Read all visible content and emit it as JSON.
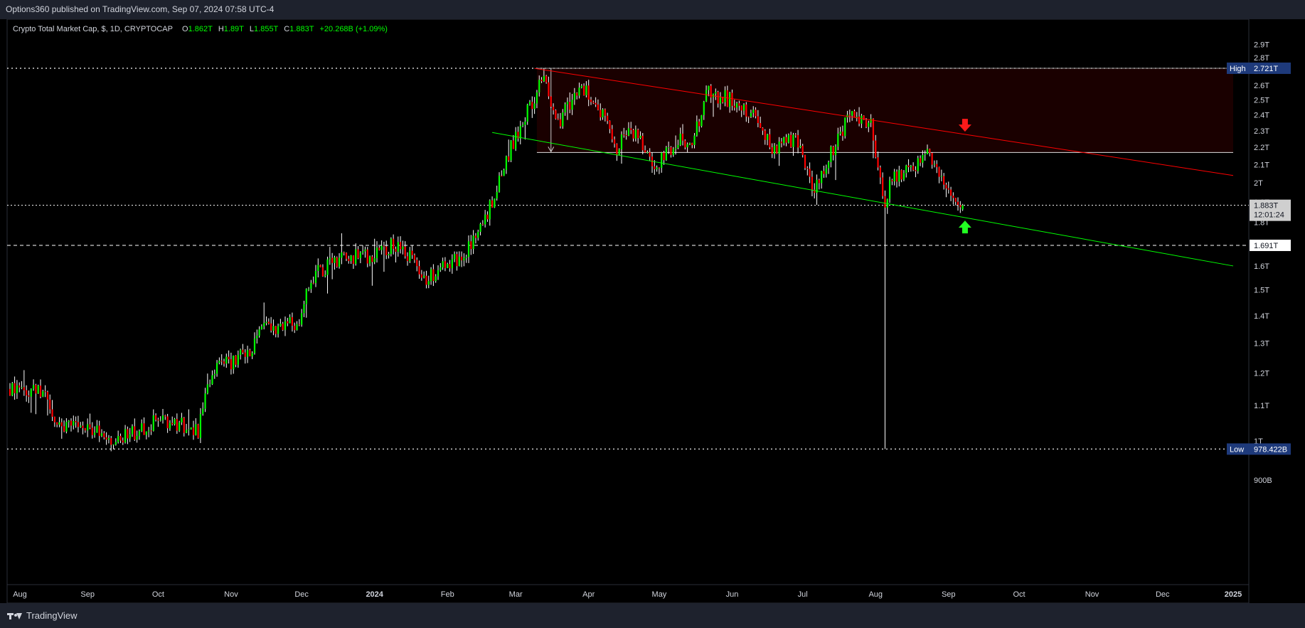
{
  "publish_line": "Options360 published on TradingView.com, Sep 07, 2024 07:58 UTC-4",
  "legend": {
    "symbol": "Crypto Total Market Cap, $, 1D, CRYPTOCAP",
    "open_label": "O",
    "open": "1.862T",
    "high_label": "H",
    "high": "1.89T",
    "low_label": "L",
    "low": "1.855T",
    "close_label": "C",
    "close": "1.883T",
    "change": "+20.268B (+1.09%)"
  },
  "price_axis_ticks": [
    "2.9T",
    "2.8T",
    "2.7T",
    "2.6T",
    "2.5T",
    "2.4T",
    "2.3T",
    "2.2T",
    "2.1T",
    "2T",
    "1.9T",
    "1.8T",
    "1.7T",
    "1.6T",
    "1.5T",
    "1.4T",
    "1.3T",
    "1.2T",
    "1.1T",
    "1T",
    "900B"
  ],
  "time_axis_labels": [
    "Aug",
    "Sep",
    "Oct",
    "Nov",
    "Dec",
    "2024",
    "Feb",
    "Mar",
    "Apr",
    "May",
    "Jun",
    "Jul",
    "Aug",
    "Sep",
    "Oct",
    "Nov",
    "Dec",
    "2025"
  ],
  "labels": {
    "high_tag": "High",
    "high_value": "2.721T",
    "low_tag": "Low",
    "low_value": "978.422B",
    "last_price": "1.883T",
    "countdown": "12:01:24",
    "support_price": "1.691T"
  },
  "footer": {
    "brand": "TradingView"
  },
  "colors": {
    "background": "#000000",
    "up_candle": "#00ff00",
    "down_candle": "#ff0000",
    "wick": "#ffffff",
    "resistance_line": "#ff0000",
    "support_line": "#00ff00",
    "range_zone": "#1a0000",
    "axis_text": "#d1d4dc",
    "legend_value": "#00ff00"
  },
  "chart_data": {
    "type": "candlestick",
    "title": "Crypto Total Market Cap, $, 1D, CRYPTOCAP",
    "units": "USD",
    "ylim": [
      "850B",
      "3T"
    ],
    "log_scale": true,
    "xlim": [
      "2023-07-27",
      "2025-01-10"
    ],
    "grid": false,
    "close_path": [
      [
        "2023-07-30",
        "1.15T"
      ],
      [
        "2023-08-14",
        "1.15T"
      ],
      [
        "2023-08-18",
        "1.03T"
      ],
      [
        "2023-08-31",
        "1.04T"
      ],
      [
        "2023-09-11",
        "1.00T"
      ],
      [
        "2023-09-30",
        "1.05T"
      ],
      [
        "2023-10-10",
        "1.05T"
      ],
      [
        "2023-10-18",
        "1.03T"
      ],
      [
        "2023-10-24",
        "1.20T"
      ],
      [
        "2023-11-09",
        "1.28T"
      ],
      [
        "2023-11-15",
        "1.35T"
      ],
      [
        "2023-11-30",
        "1.38T"
      ],
      [
        "2023-12-05",
        "1.55T"
      ],
      [
        "2023-12-15",
        "1.62T"
      ],
      [
        "2023-12-31",
        "1.65T"
      ],
      [
        "2024-01-11",
        "1.70T"
      ],
      [
        "2024-01-22",
        "1.55T"
      ],
      [
        "2024-02-01",
        "1.60T"
      ],
      [
        "2024-02-10",
        "1.68T"
      ],
      [
        "2024-02-20",
        "1.90T"
      ],
      [
        "2024-02-28",
        "2.20T"
      ],
      [
        "2024-03-05",
        "2.40T"
      ],
      [
        "2024-03-13",
        "2.65T"
      ],
      [
        "2024-03-19",
        "2.35T"
      ],
      [
        "2024-03-28",
        "2.60T"
      ],
      [
        "2024-04-08",
        "2.40T"
      ],
      [
        "2024-04-13",
        "2.20T"
      ],
      [
        "2024-04-20",
        "2.30T"
      ],
      [
        "2024-04-30",
        "2.10T"
      ],
      [
        "2024-05-10",
        "2.25T"
      ],
      [
        "2024-05-15",
        "2.20T"
      ],
      [
        "2024-05-21",
        "2.55T"
      ],
      [
        "2024-05-31",
        "2.50T"
      ],
      [
        "2024-06-10",
        "2.40T"
      ],
      [
        "2024-06-18",
        "2.20T"
      ],
      [
        "2024-06-30",
        "2.25T"
      ],
      [
        "2024-07-05",
        "1.95T"
      ],
      [
        "2024-07-14",
        "2.20T"
      ],
      [
        "2024-07-21",
        "2.40T"
      ],
      [
        "2024-07-30",
        "2.35T"
      ],
      [
        "2024-08-05",
        "1.90T"
      ],
      [
        "2024-08-08",
        "2.05T"
      ],
      [
        "2024-08-17",
        "2.05T"
      ],
      [
        "2024-08-23",
        "2.22T"
      ],
      [
        "2024-08-27",
        "2.05T"
      ],
      [
        "2024-09-06",
        "1.85T"
      ],
      [
        "2024-09-07",
        "1.883T"
      ]
    ],
    "last": {
      "open": "1.862T",
      "high": "1.89T",
      "low": "1.855T",
      "close": "1.883T",
      "change": "+20.268B",
      "change_pct": "+1.09%"
    },
    "high": "2.721T",
    "low": "978.422B",
    "horizontal_levels": [
      "2.721T",
      "2.17T",
      "1.883T",
      "1.691T",
      "978.422B"
    ],
    "trendlines": [
      {
        "color": "red",
        "from": [
          "2024-03-09",
          "2.72T"
        ],
        "to": [
          "2024-12-31",
          "2.04T"
        ]
      },
      {
        "color": "green",
        "from": [
          "2024-02-20",
          "2.29T"
        ],
        "to": [
          "2024-12-31",
          "1.60T"
        ]
      }
    ],
    "range_zone": {
      "from": "2024-03-10",
      "to": "2024-12-31",
      "top": "2.721T",
      "bottom": "2.17T"
    },
    "arrows": [
      {
        "direction": "down",
        "color": "red",
        "date": "2024-09-08",
        "price": "2.33T"
      },
      {
        "direction": "up",
        "color": "green",
        "date": "2024-09-08",
        "price": "1.78T"
      }
    ]
  }
}
